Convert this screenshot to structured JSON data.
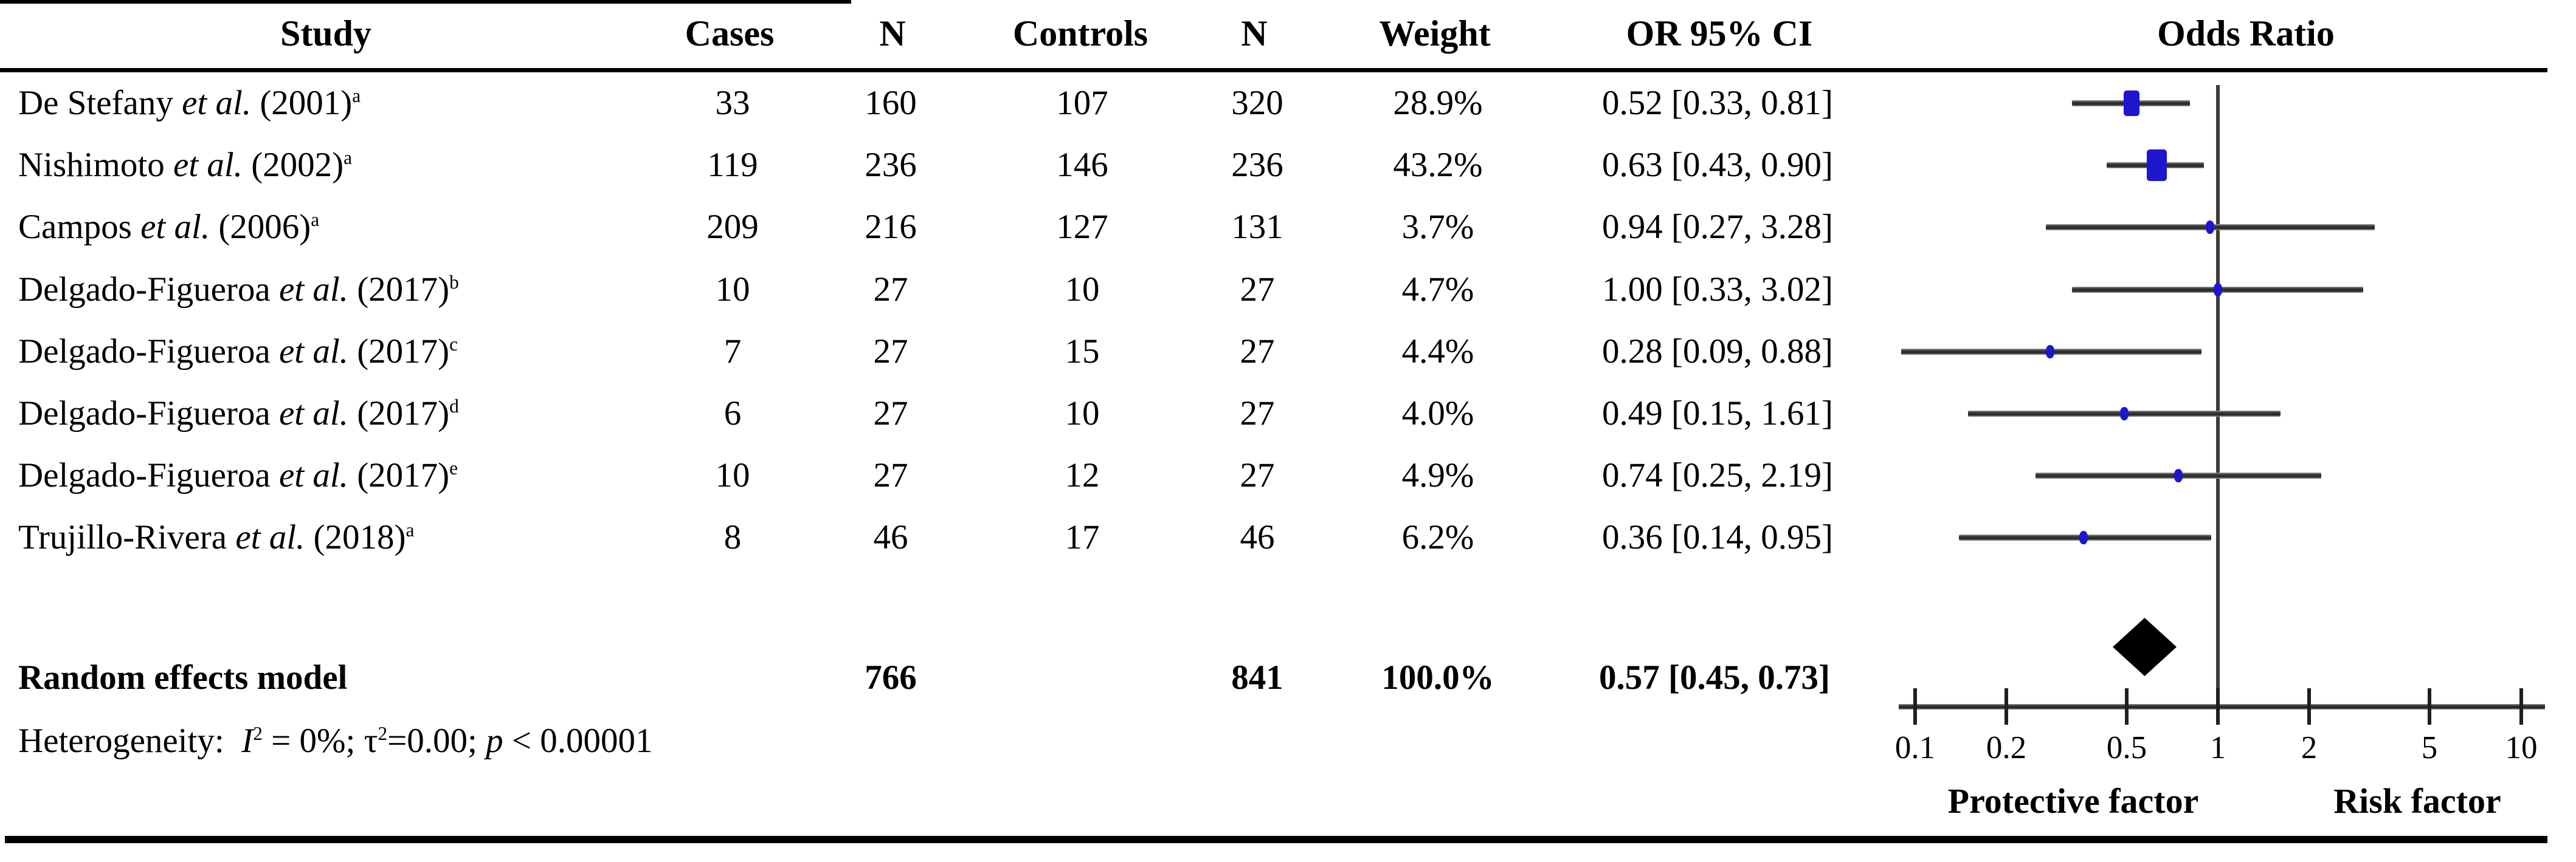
{
  "table": {
    "headers": {
      "study": "Study",
      "cases": "Cases",
      "n_cases": "N",
      "controls": "Controls",
      "n_controls": "N",
      "weight": "Weight",
      "or_ci": "OR 95% CI",
      "odds_ratio": "Odds Ratio"
    },
    "rows": [
      {
        "study": "De Stefany",
        "etal": "et al.",
        "year": "(2001)",
        "sup": "a",
        "cases": "33",
        "n_cases": "160",
        "controls": "107",
        "n_controls": "320",
        "weight": "28.9%",
        "or_ci": "0.52 [0.33, 0.81]",
        "or": 0.52,
        "low": 0.33,
        "high": 0.81,
        "weight_pct": 28.9
      },
      {
        "study": "Nishimoto",
        "etal": "et al.",
        "year": "(2002)",
        "sup": "a",
        "cases": "119",
        "n_cases": "236",
        "controls": "146",
        "n_controls": "236",
        "weight": "43.2%",
        "or_ci": "0.63 [0.43, 0.90]",
        "or": 0.63,
        "low": 0.43,
        "high": 0.9,
        "weight_pct": 43.2
      },
      {
        "study": "Campos",
        "etal": "et al.",
        "year": "(2006)",
        "sup": "a",
        "cases": "209",
        "n_cases": "216",
        "controls": "127",
        "n_controls": "131",
        "weight": "3.7%",
        "or_ci": "0.94 [0.27, 3.28]",
        "or": 0.94,
        "low": 0.27,
        "high": 3.28,
        "weight_pct": 3.7
      },
      {
        "study": "Delgado-Figueroa",
        "etal": "et al.",
        "year": "(2017)",
        "sup": "b",
        "cases": "10",
        "n_cases": "27",
        "controls": "10",
        "n_controls": "27",
        "weight": "4.7%",
        "or_ci": "1.00 [0.33, 3.02]",
        "or": 1.0,
        "low": 0.33,
        "high": 3.02,
        "weight_pct": 4.7
      },
      {
        "study": "Delgado-Figueroa",
        "etal": "et al.",
        "year": "(2017)",
        "sup": "c",
        "cases": "7",
        "n_cases": "27",
        "controls": "15",
        "n_controls": "27",
        "weight": "4.4%",
        "or_ci": "0.28 [0.09, 0.88]",
        "or": 0.28,
        "low": 0.09,
        "high": 0.88,
        "weight_pct": 4.4
      },
      {
        "study": "Delgado-Figueroa",
        "etal": "et al.",
        "year": "(2017)",
        "sup": "d",
        "cases": "6",
        "n_cases": "27",
        "controls": "10",
        "n_controls": "27",
        "weight": "4.0%",
        "or_ci": "0.49 [0.15, 1.61]",
        "or": 0.49,
        "low": 0.15,
        "high": 1.61,
        "weight_pct": 4.0
      },
      {
        "study": "Delgado-Figueroa",
        "etal": "et al.",
        "year": "(2017)",
        "sup": "e",
        "cases": "10",
        "n_cases": "27",
        "controls": "12",
        "n_controls": "27",
        "weight": "4.9%",
        "or_ci": "0.74 [0.25, 2.19]",
        "or": 0.74,
        "low": 0.25,
        "high": 2.19,
        "weight_pct": 4.9
      },
      {
        "study": "Trujillo-Rivera",
        "etal": "et al.",
        "year": "(2018)",
        "sup": "a",
        "cases": "8",
        "n_cases": "46",
        "controls": "17",
        "n_controls": "46",
        "weight": "6.2%",
        "or_ci": "0.36 [0.14, 0.95]",
        "or": 0.36,
        "low": 0.14,
        "high": 0.95,
        "weight_pct": 6.2
      }
    ],
    "summary": {
      "label": "Random effects model",
      "n_cases": "766",
      "n_controls": "841",
      "weight": "100.0%",
      "or_ci": "0.57 [0.45, 0.73]",
      "or": 0.57,
      "low": 0.45,
      "high": 0.73
    }
  },
  "heterogeneity": {
    "label": "Heterogeneity:",
    "i": "I",
    "i_sup": "2",
    "seg1": " = 0%; τ",
    "tau_sup": "2",
    "seg2": "=0.00;  ",
    "p": "p",
    "seg3": " < 0.00001"
  },
  "axis": {
    "ticks": [
      "0.1",
      "0.2",
      "0.5",
      "1",
      "2",
      "5",
      "10"
    ],
    "tick_values": [
      0.1,
      0.2,
      0.5,
      1,
      2,
      5,
      10
    ],
    "left_label": "Protective factor",
    "right_label": "Risk factor"
  },
  "colors": {
    "marker_blue": "#1c16cd",
    "ci_line_gray": "#3a3a3a",
    "diamond_black": "#000000"
  },
  "chart_data": {
    "type": "scatter",
    "subtype": "forest-plot",
    "title": "Odds Ratio",
    "x_scale": "log",
    "x_ticks": [
      0.1,
      0.2,
      0.5,
      1,
      2,
      5,
      10
    ],
    "x_range": [
      0.1,
      10
    ],
    "reference_line": 1,
    "x_region_labels": {
      "left_of_1": "Protective factor",
      "right_of_1": "Risk factor"
    },
    "studies": [
      {
        "name": "De Stefany et al. (2001)a",
        "cases": 33,
        "cases_n": 160,
        "controls": 107,
        "controls_n": 320,
        "weight_pct": 28.9,
        "or": 0.52,
        "ci_low": 0.33,
        "ci_high": 0.81
      },
      {
        "name": "Nishimoto et al. (2002)a",
        "cases": 119,
        "cases_n": 236,
        "controls": 146,
        "controls_n": 236,
        "weight_pct": 43.2,
        "or": 0.63,
        "ci_low": 0.43,
        "ci_high": 0.9
      },
      {
        "name": "Campos et al. (2006)a",
        "cases": 209,
        "cases_n": 216,
        "controls": 127,
        "controls_n": 131,
        "weight_pct": 3.7,
        "or": 0.94,
        "ci_low": 0.27,
        "ci_high": 3.28
      },
      {
        "name": "Delgado-Figueroa et al. (2017)b",
        "cases": 10,
        "cases_n": 27,
        "controls": 10,
        "controls_n": 27,
        "weight_pct": 4.7,
        "or": 1.0,
        "ci_low": 0.33,
        "ci_high": 3.02
      },
      {
        "name": "Delgado-Figueroa et al. (2017)c",
        "cases": 7,
        "cases_n": 27,
        "controls": 15,
        "controls_n": 27,
        "weight_pct": 4.4,
        "or": 0.28,
        "ci_low": 0.09,
        "ci_high": 0.88
      },
      {
        "name": "Delgado-Figueroa et al. (2017)d",
        "cases": 6,
        "cases_n": 27,
        "controls": 10,
        "controls_n": 27,
        "weight_pct": 4.0,
        "or": 0.49,
        "ci_low": 0.15,
        "ci_high": 1.61
      },
      {
        "name": "Delgado-Figueroa et al. (2017)e",
        "cases": 10,
        "cases_n": 27,
        "controls": 12,
        "controls_n": 27,
        "weight_pct": 4.9,
        "or": 0.74,
        "ci_low": 0.25,
        "ci_high": 2.19
      },
      {
        "name": "Trujillo-Rivera et al. (2018)a",
        "cases": 8,
        "cases_n": 46,
        "controls": 17,
        "controls_n": 46,
        "weight_pct": 6.2,
        "or": 0.36,
        "ci_low": 0.14,
        "ci_high": 0.95
      }
    ],
    "summary": {
      "name": "Random effects model",
      "cases_n_total": 766,
      "controls_n_total": 841,
      "weight_pct": 100.0,
      "or": 0.57,
      "ci_low": 0.45,
      "ci_high": 0.73
    },
    "heterogeneity": {
      "I2": "0%",
      "tau2": 0.0,
      "p": "< 0.00001"
    }
  }
}
